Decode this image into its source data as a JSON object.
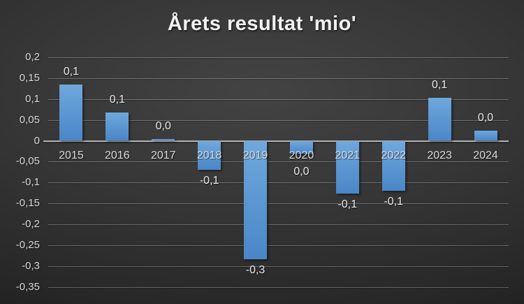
{
  "chart_data": {
    "type": "bar",
    "title": "Årets resultat 'mio'",
    "categories": [
      "2015",
      "2016",
      "2017",
      "2018",
      "2019",
      "2020",
      "2021",
      "2022",
      "2023",
      "2024"
    ],
    "values": [
      0.135,
      0.068,
      0.005,
      -0.069,
      -0.283,
      -0.031,
      -0.126,
      -0.12,
      0.103,
      0.024
    ],
    "data_labels": [
      "0,1",
      "0,1",
      "0,0",
      "-0,1",
      "-0,3",
      "0,0",
      "-0,1",
      "-0,1",
      "0,1",
      "0,0"
    ],
    "y_ticks": [
      {
        "value": 0.2,
        "label": "0,2"
      },
      {
        "value": 0.15,
        "label": "0,15"
      },
      {
        "value": 0.1,
        "label": "0,1"
      },
      {
        "value": 0.05,
        "label": "0,05"
      },
      {
        "value": 0,
        "label": "0"
      },
      {
        "value": -0.05,
        "label": "-0,05"
      },
      {
        "value": -0.1,
        "label": "-0,1"
      },
      {
        "value": -0.15,
        "label": "-0,15"
      },
      {
        "value": -0.2,
        "label": "-0,2"
      },
      {
        "value": -0.25,
        "label": "-0,25"
      },
      {
        "value": -0.3,
        "label": "-0,3"
      },
      {
        "value": -0.35,
        "label": "-0,35"
      }
    ],
    "ylim": [
      -0.35,
      0.2
    ],
    "xlabel": "",
    "ylabel": "",
    "grid": true,
    "legend": "none",
    "colors": {
      "bar_top": "#6fa8dc",
      "bar_bottom": "#4a86c8",
      "gridline": "rgba(255,255,255,0.28)",
      "zero_axis": "rgba(255,255,255,0.62)",
      "tick_text": "#d9d9d9",
      "label_text": "#e9e9e9",
      "title_text": "#f2f2f2"
    }
  }
}
